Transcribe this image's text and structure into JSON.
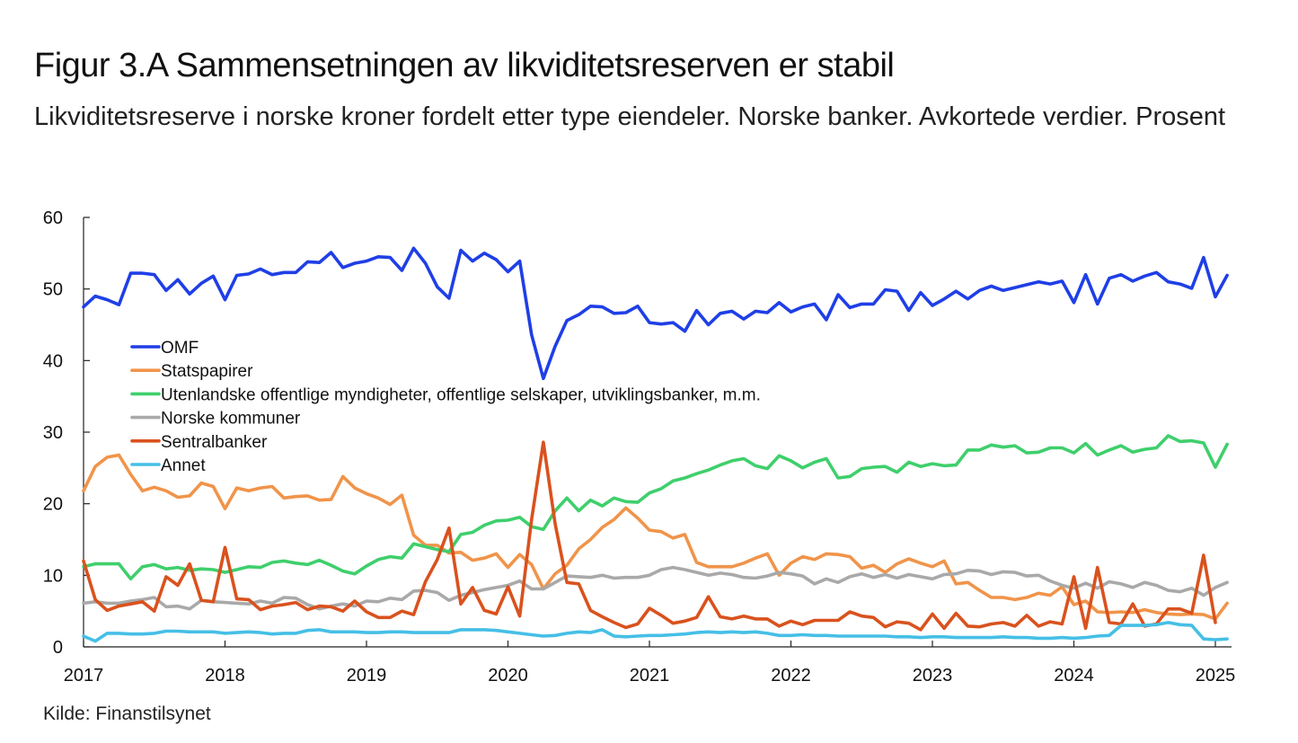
{
  "header": {
    "title": "Figur 3.A Sammensetningen av likviditetsreserven er stabil",
    "subtitle": "Likviditetsreserve i norske kroner fordelt etter type eiendeler. Norske banker. Avkortede verdier. Prosent"
  },
  "footer": {
    "source": "Kilde: Finanstilsynet"
  },
  "chart_data": {
    "type": "line",
    "title": "Figur 3.A Sammensetningen av likviditetsreserven er stabil",
    "subtitle": "Likviditetsreserve i norske kroner fordelt etter type eiendeler. Norske banker. Avkortede verdier. Prosent",
    "x_start": "2017-01",
    "x_frequency": "monthly",
    "x_ticks": [
      "2017",
      "2018",
      "2019",
      "2020",
      "2021",
      "2022",
      "2023",
      "2024",
      "2025"
    ],
    "y_ticks": [
      0,
      10,
      20,
      30,
      40,
      50,
      60
    ],
    "xlim": [
      "2017-01",
      "2025-02"
    ],
    "ylim": [
      0,
      60
    ],
    "grid": false,
    "legend_position": "left, inside plot",
    "series": [
      {
        "name": "OMF",
        "color": "#1f3fe6",
        "values": [
          47.5,
          49,
          48.5,
          47.8,
          52.2,
          52.2,
          52,
          49.8,
          51.3,
          49.3,
          50.8,
          51.8,
          48.5,
          51.9,
          52.1,
          52.8,
          52,
          52.3,
          52.3,
          53.8,
          53.7,
          55.1,
          53,
          53.6,
          53.9,
          54.5,
          54.4,
          52.6,
          55.7,
          53.6,
          50.3,
          48.7,
          55.4,
          53.9,
          55,
          54.1,
          52.4,
          53.9,
          43.6,
          37.5,
          42,
          45.6,
          46.4,
          47.6,
          47.5,
          46.6,
          46.7,
          47.6,
          45.3,
          45.1,
          45.3,
          44.1,
          47,
          45,
          46.6,
          46.9,
          45.8,
          46.9,
          46.7,
          48.1,
          46.8,
          47.5,
          47.9,
          45.7,
          49.2,
          47.4,
          47.9,
          47.9,
          49.9,
          49.7,
          47,
          49.5,
          47.7,
          48.6,
          49.7,
          48.6,
          49.8,
          50.4,
          49.8,
          50.2,
          50.6,
          51,
          50.7,
          51.1,
          48.1,
          52,
          47.9,
          51.5,
          52,
          51.1,
          51.8,
          52.3,
          51,
          50.7,
          50.1,
          54.4,
          48.9,
          51.9
        ]
      },
      {
        "name": "Statspapirer",
        "color": "#f0944a",
        "values": [
          21.8,
          25.2,
          26.5,
          26.8,
          24.1,
          21.8,
          22.3,
          21.8,
          20.9,
          21.1,
          22.9,
          22.4,
          19.3,
          22.2,
          21.8,
          22.2,
          22.4,
          20.8,
          21,
          21.1,
          20.5,
          20.6,
          23.8,
          22.2,
          21.4,
          20.8,
          19.9,
          21.2,
          15.6,
          14.2,
          14.2,
          13.1,
          13.2,
          12.1,
          12.4,
          13,
          11.1,
          12.9,
          11.5,
          8.1,
          10.2,
          11.4,
          13.7,
          15,
          16.7,
          17.8,
          19.4,
          18,
          16.3,
          16.1,
          15.2,
          15.7,
          11.8,
          11.2,
          11.2,
          11.2,
          11.7,
          12.4,
          13,
          10,
          11.7,
          12.6,
          12.2,
          13,
          12.9,
          12.6,
          11,
          11.4,
          10.4,
          11.6,
          12.3,
          11.7,
          11.2,
          12,
          8.8,
          9,
          7.9,
          6.9,
          6.9,
          6.6,
          6.9,
          7.5,
          7.2,
          8.4,
          5.9,
          6.4,
          4.9,
          4.8,
          4.9,
          4.8,
          5.2,
          4.8,
          4.6,
          4.5,
          4.6,
          4.5,
          3.9,
          6.1
        ]
      },
      {
        "name": "Utenlandske offentlige myndigheter, offentlige selskaper, utviklingsbanker, m.m.",
        "color": "#3fcf6c",
        "values": [
          11.2,
          11.6,
          11.6,
          11.6,
          9.5,
          11.2,
          11.5,
          10.9,
          11.1,
          10.7,
          10.9,
          10.8,
          10.4,
          10.8,
          11.2,
          11.1,
          11.8,
          12,
          11.7,
          11.5,
          12.1,
          11.4,
          10.6,
          10.2,
          11.3,
          12.2,
          12.6,
          12.4,
          14.4,
          14,
          13.6,
          13.3,
          15.7,
          16,
          17,
          17.6,
          17.7,
          18.1,
          16.8,
          16.4,
          19,
          20.8,
          19,
          20.5,
          19.7,
          20.8,
          20.3,
          20.2,
          21.5,
          22.1,
          23.2,
          23.6,
          24.2,
          24.7,
          25.4,
          26,
          26.3,
          25.3,
          24.9,
          26.7,
          26,
          25,
          25.8,
          26.3,
          23.6,
          23.8,
          24.9,
          25.1,
          25.2,
          24.4,
          25.8,
          25.2,
          25.6,
          25.3,
          25.4,
          27.5,
          27.5,
          28.2,
          27.9,
          28.1,
          27.1,
          27.2,
          27.8,
          27.8,
          27.1,
          28.4,
          26.8,
          27.5,
          28.1,
          27.2,
          27.6,
          27.8,
          29.5,
          28.7,
          28.8,
          28.5,
          25.1,
          28.3
        ]
      },
      {
        "name": "Norske kommuner",
        "color": "#a9a9a9",
        "values": [
          6.1,
          6.3,
          6.1,
          6.1,
          6.4,
          6.6,
          6.9,
          5.6,
          5.7,
          5.3,
          6.5,
          6.3,
          6.2,
          6.1,
          6,
          6.4,
          6.1,
          6.9,
          6.8,
          5.9,
          5.3,
          5.7,
          6,
          5.7,
          6.4,
          6.3,
          6.8,
          6.6,
          7.8,
          7.9,
          7.6,
          6.5,
          7.2,
          7.6,
          8,
          8.3,
          8.6,
          9.2,
          8.1,
          8.1,
          9,
          9.9,
          9.8,
          9.7,
          10,
          9.6,
          9.7,
          9.7,
          10,
          10.8,
          11.1,
          10.8,
          10.4,
          10,
          10.3,
          10.1,
          9.7,
          9.6,
          9.9,
          10.4,
          10.2,
          9.9,
          8.8,
          9.5,
          9,
          9.8,
          10.2,
          9.7,
          10.1,
          9.6,
          10.1,
          9.8,
          9.5,
          10.1,
          10.2,
          10.7,
          10.6,
          10.1,
          10.5,
          10.4,
          9.9,
          10,
          9.2,
          8.6,
          8.2,
          8.9,
          8.2,
          9.1,
          8.8,
          8.3,
          9,
          8.6,
          7.9,
          7.7,
          8.2,
          7.2,
          8.3,
          9
        ]
      },
      {
        "name": "Sentralbanker",
        "color": "#d9521e",
        "values": [
          12,
          6.6,
          5.1,
          5.7,
          6,
          6.3,
          5,
          9.8,
          8.6,
          11.6,
          6.5,
          6.3,
          13.9,
          6.7,
          6.6,
          5.2,
          5.7,
          5.9,
          6.2,
          5.2,
          5.7,
          5.6,
          5,
          6.4,
          4.9,
          4.1,
          4.1,
          5,
          4.5,
          9.1,
          12.2,
          16.6,
          6,
          8.3,
          5.1,
          4.6,
          8.4,
          4.3,
          17.8,
          28.6,
          17.2,
          9,
          8.8,
          5.1,
          4.2,
          3.4,
          2.7,
          3.2,
          5.4,
          4.4,
          3.3,
          3.6,
          4.1,
          7,
          4.2,
          3.9,
          4.3,
          3.9,
          3.9,
          2.9,
          3.6,
          3.1,
          3.7,
          3.7,
          3.7,
          4.9,
          4.3,
          4.1,
          2.8,
          3.5,
          3.3,
          2.4,
          4.6,
          2.6,
          4.7,
          2.9,
          2.8,
          3.2,
          3.4,
          2.9,
          4.4,
          2.9,
          3.5,
          3.2,
          9.8,
          2.6,
          11.1,
          3.4,
          3.2,
          6,
          2.9,
          3.2,
          5.3,
          5.3,
          4.7,
          12.8,
          3.4
        ]
      },
      {
        "name": "Annet",
        "color": "#45bfe6",
        "values": [
          1.5,
          0.8,
          1.9,
          1.9,
          1.8,
          1.8,
          1.9,
          2.2,
          2.2,
          2.1,
          2.1,
          2.1,
          1.9,
          2,
          2.1,
          2,
          1.8,
          1.9,
          1.9,
          2.3,
          2.4,
          2.1,
          2.1,
          2.1,
          2,
          2,
          2.1,
          2.1,
          2,
          2,
          2,
          2,
          2.4,
          2.4,
          2.4,
          2.3,
          2.1,
          1.9,
          1.7,
          1.5,
          1.6,
          1.9,
          2.1,
          2,
          2.4,
          1.5,
          1.4,
          1.5,
          1.6,
          1.6,
          1.7,
          1.8,
          2,
          2.1,
          2,
          2.1,
          2,
          2.1,
          1.9,
          1.6,
          1.6,
          1.7,
          1.6,
          1.6,
          1.5,
          1.5,
          1.5,
          1.5,
          1.5,
          1.4,
          1.4,
          1.3,
          1.4,
          1.4,
          1.3,
          1.3,
          1.3,
          1.3,
          1.4,
          1.3,
          1.3,
          1.2,
          1.2,
          1.3,
          1.2,
          1.3,
          1.5,
          1.6,
          3,
          3,
          3,
          3.1,
          3.4,
          3.1,
          3,
          1.1,
          1,
          1.1
        ]
      }
    ]
  }
}
